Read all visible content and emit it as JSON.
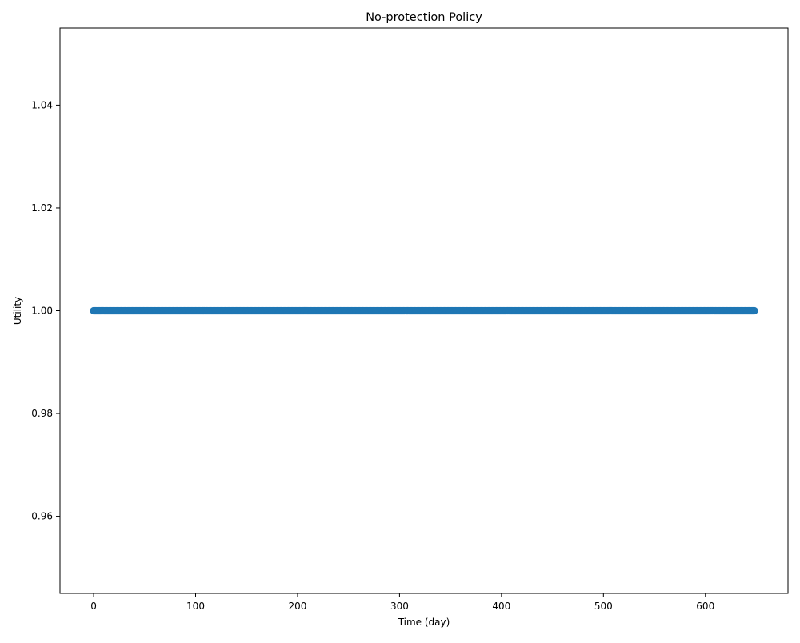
{
  "chart_data": {
    "type": "scatter",
    "title": "No-protection Policy",
    "xlabel": "Time (day)",
    "ylabel": "Utility",
    "xlim": [
      -33,
      681
    ],
    "ylim": [
      0.945,
      1.055
    ],
    "xticks": [
      0,
      100,
      200,
      300,
      400,
      500,
      600
    ],
    "xtick_labels": [
      "0",
      "100",
      "200",
      "300",
      "400",
      "500",
      "600"
    ],
    "yticks": [
      0.96,
      0.98,
      1.0,
      1.02,
      1.04
    ],
    "ytick_labels": [
      "0.96",
      "0.98",
      "1.00",
      "1.02",
      "1.04"
    ],
    "grid": false,
    "series": [
      {
        "color": "#1f77b4",
        "x_start": 0,
        "x_end": 648,
        "x_step": 1,
        "y_constant": 1.0
      }
    ]
  }
}
